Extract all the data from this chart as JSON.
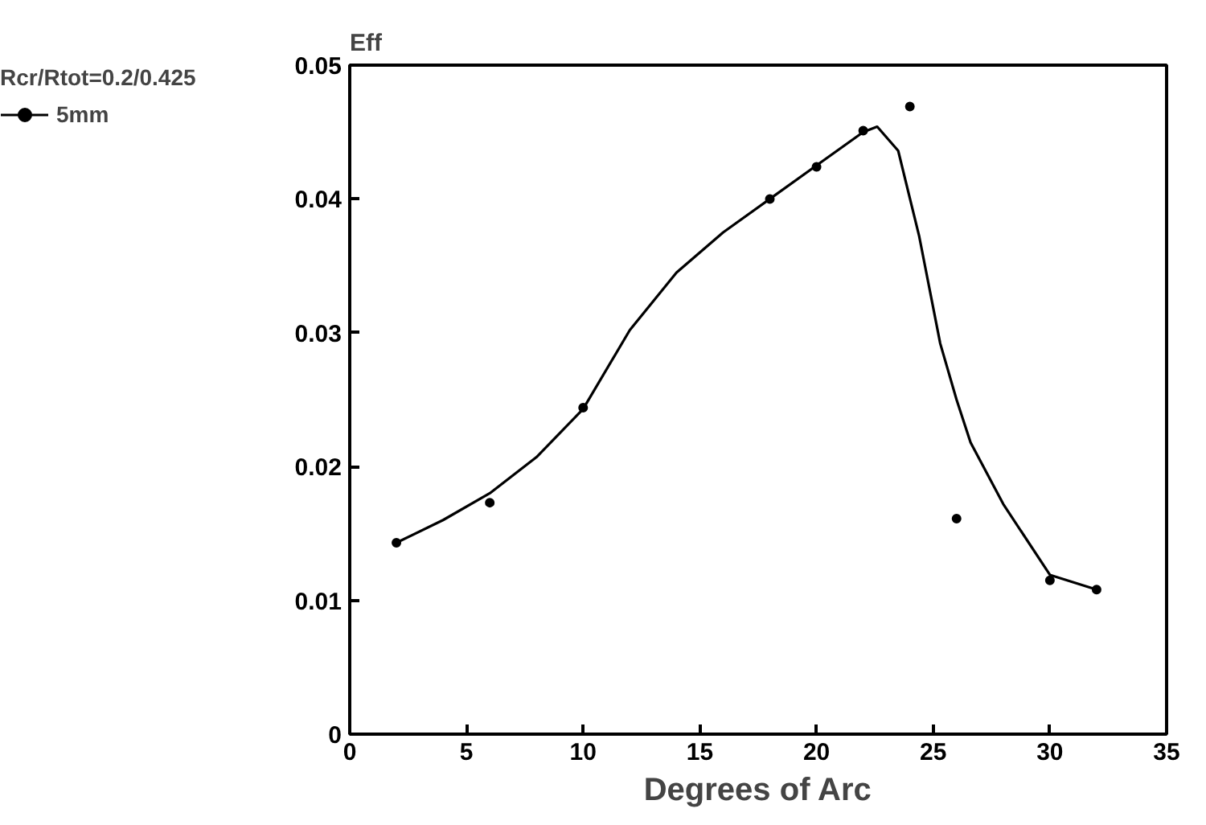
{
  "chart_data": {
    "type": "scatter",
    "xlabel": "Degrees of Arc",
    "ylabel": "Eff",
    "legend_title": "Rcr/Rtot=0.2/0.425",
    "x": [
      2,
      6,
      10,
      18,
      20,
      22,
      24,
      26,
      30,
      32
    ],
    "series": [
      {
        "name": "5mm",
        "marker": "circle",
        "color": "#000000",
        "values": [
          0.0143,
          0.0173,
          0.0244,
          0.04,
          0.0424,
          0.0451,
          0.0469,
          0.0161,
          0.0115,
          0.0108
        ]
      },
      {
        "type": "line",
        "color": "#000000",
        "x": [
          2,
          4,
          6,
          8,
          10,
          12,
          14,
          16,
          18,
          20,
          22,
          22.6,
          23.5,
          24.4,
          25.3,
          26,
          26.6,
          28,
          30,
          32
        ],
        "values": [
          0.0143,
          0.016,
          0.018,
          0.0207,
          0.0243,
          0.0302,
          0.0345,
          0.0375,
          0.04,
          0.0425,
          0.045,
          0.0454,
          0.0436,
          0.0372,
          0.0292,
          0.025,
          0.0218,
          0.0172,
          0.0119,
          0.0108
        ]
      }
    ],
    "xlim": [
      0,
      35
    ],
    "xticks": [
      0,
      5,
      10,
      15,
      20,
      25,
      30,
      35
    ],
    "ylim": [
      0,
      0.05
    ],
    "yticks": [
      0,
      0.01,
      0.02,
      0.03,
      0.04,
      0.05
    ],
    "grid": false,
    "legend": "left",
    "line_style": "solid"
  }
}
